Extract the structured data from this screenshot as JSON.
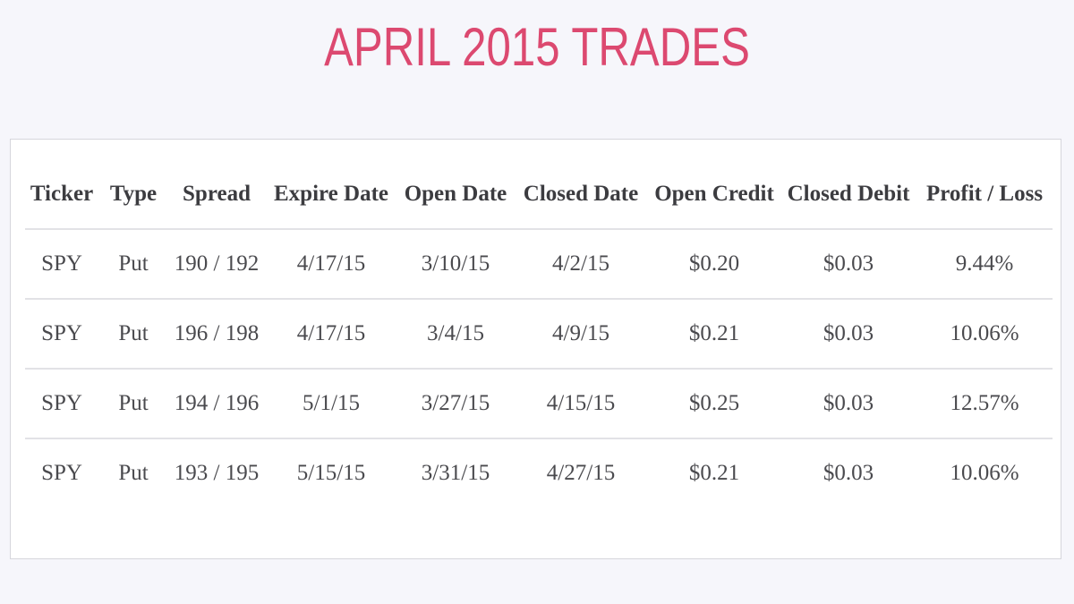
{
  "title": "APRIL 2015 TRADES",
  "table": {
    "columns": [
      "Ticker",
      "Type",
      "Spread",
      "Expire Date",
      "Open Date",
      "Closed Date",
      "Open Credit",
      "Closed Debit",
      "Profit / Loss"
    ],
    "rows": [
      [
        "SPY",
        "Put",
        "190 / 192",
        "4/17/15",
        "3/10/15",
        "4/2/15",
        "$0.20",
        "$0.03",
        "9.44%"
      ],
      [
        "SPY",
        "Put",
        "196 / 198",
        "4/17/15",
        "3/4/15",
        "4/9/15",
        "$0.21",
        "$0.03",
        "10.06%"
      ],
      [
        "SPY",
        "Put",
        "194 / 196",
        "5/1/15",
        "3/27/15",
        "4/15/15",
        "$0.25",
        "$0.03",
        "12.57%"
      ],
      [
        "SPY",
        "Put",
        "193 / 195",
        "5/15/15",
        "3/31/15",
        "4/27/15",
        "$0.21",
        "$0.03",
        "10.06%"
      ]
    ]
  },
  "colors": {
    "title": "#dc4970",
    "background": "#f6f6fb",
    "card": "#ffffff",
    "text": "#4a4a4e"
  }
}
